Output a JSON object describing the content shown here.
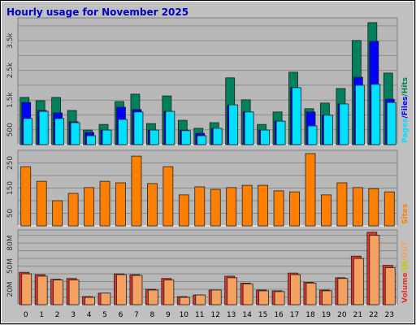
{
  "chart_data": [
    {
      "type": "bar",
      "title": "Hourly usage for November 2025",
      "categories": [
        "0",
        "1",
        "2",
        "3",
        "4",
        "5",
        "6",
        "7",
        "8",
        "9",
        "10",
        "11",
        "12",
        "13",
        "14",
        "15",
        "16",
        "17",
        "18",
        "19",
        "20",
        "21",
        "22",
        "23"
      ],
      "series": [
        {
          "name": "Pages",
          "color": "#00e0ff",
          "values": [
            880,
            1120,
            880,
            740,
            300,
            490,
            850,
            1100,
            490,
            1120,
            470,
            300,
            550,
            1340,
            1100,
            490,
            790,
            1920,
            630,
            990,
            1370,
            2000,
            2030,
            1420
          ]
        },
        {
          "name": "/Files",
          "color": "#0000ff",
          "values": [
            1420,
            1150,
            1070,
            770,
            410,
            490,
            1260,
            1180,
            490,
            1120,
            490,
            380,
            550,
            1320,
            1100,
            490,
            790,
            1920,
            1100,
            990,
            1370,
            2270,
            3480,
            1530
          ]
        },
        {
          "name": "/Hits",
          "color": "#00805c",
          "values": [
            1590,
            1480,
            1590,
            1150,
            490,
            680,
            1450,
            1700,
            710,
            1640,
            820,
            550,
            740,
            2250,
            1510,
            680,
            1100,
            2440,
            1210,
            1400,
            1890,
            3510,
            4110,
            2410
          ]
        }
      ],
      "ylim": [
        0,
        4270
      ],
      "yticks": [
        {
          "value": 500,
          "label": "500"
        },
        {
          "value": 1500,
          "label": "1.5k"
        },
        {
          "value": 2500,
          "label": "2.5k"
        },
        {
          "value": 3500,
          "label": "3.5k"
        }
      ],
      "ygrid": [
        500,
        1000,
        1500,
        2000,
        2500,
        3000,
        3500,
        4000
      ],
      "grid": true
    },
    {
      "type": "bar",
      "series": [
        {
          "name": "Sites",
          "color": "#ff8000",
          "values": [
            235,
            177,
            100,
            129,
            152,
            177,
            171,
            277,
            168,
            235,
            123,
            155,
            145,
            152,
            161,
            161,
            139,
            135,
            287,
            123,
            171,
            152,
            148,
            135
          ]
        }
      ],
      "ylim": [
        0,
        300
      ],
      "yticks": [
        50,
        150,
        250
      ],
      "ygrid": [
        50,
        100,
        150,
        200,
        250
      ],
      "grid": true
    },
    {
      "type": "bar",
      "series": [
        {
          "name": "Volume",
          "color": "#e8302a",
          "values": [
            42,
            39,
            33,
            34,
            10.5,
            15,
            40,
            39,
            20,
            34,
            10.5,
            12.6,
            19,
            37,
            28,
            19,
            18,
            41,
            29,
            19,
            35,
            63,
            94,
            51
          ]
        },
        {
          "name": "/OUT",
          "color": "#f4a060",
          "values": [
            40,
            37,
            32,
            32,
            9.5,
            15,
            39,
            38,
            19,
            32,
            9.5,
            12.6,
            19,
            35,
            27,
            18,
            17,
            39,
            28,
            18,
            34,
            60,
            90,
            48
          ]
        }
      ],
      "in_label": {
        "text": "/IN",
        "color": "#c8c800"
      },
      "ylim": [
        0,
        97
      ],
      "yticks": [
        {
          "value": 20,
          "label": "20M"
        },
        {
          "value": 50,
          "label": "50M"
        },
        {
          "value": 80,
          "label": "80M"
        }
      ],
      "ygrid": [
        10,
        20,
        30,
        40,
        50,
        60,
        70,
        80,
        90
      ],
      "grid": true
    }
  ]
}
